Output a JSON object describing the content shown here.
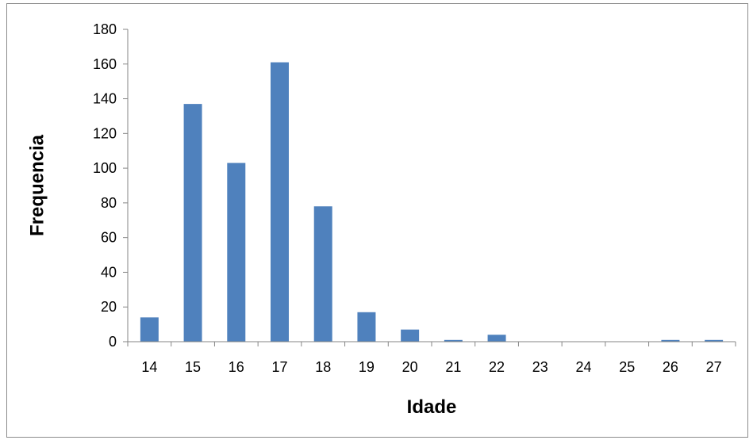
{
  "chart_data": {
    "type": "bar",
    "title": "",
    "xlabel": "Idade",
    "ylabel": "Frequencia",
    "categories": [
      "14",
      "15",
      "16",
      "17",
      "18",
      "19",
      "20",
      "21",
      "22",
      "23",
      "24",
      "25",
      "26",
      "27"
    ],
    "values": [
      14,
      137,
      103,
      161,
      78,
      17,
      7,
      1,
      4,
      0,
      0,
      0,
      1,
      1
    ],
    "ylim": [
      0,
      180
    ],
    "yticks": [
      0,
      20,
      40,
      60,
      80,
      100,
      120,
      140,
      160,
      180
    ],
    "grid": false,
    "legend": "none",
    "bar_color": "#4f81bd"
  }
}
